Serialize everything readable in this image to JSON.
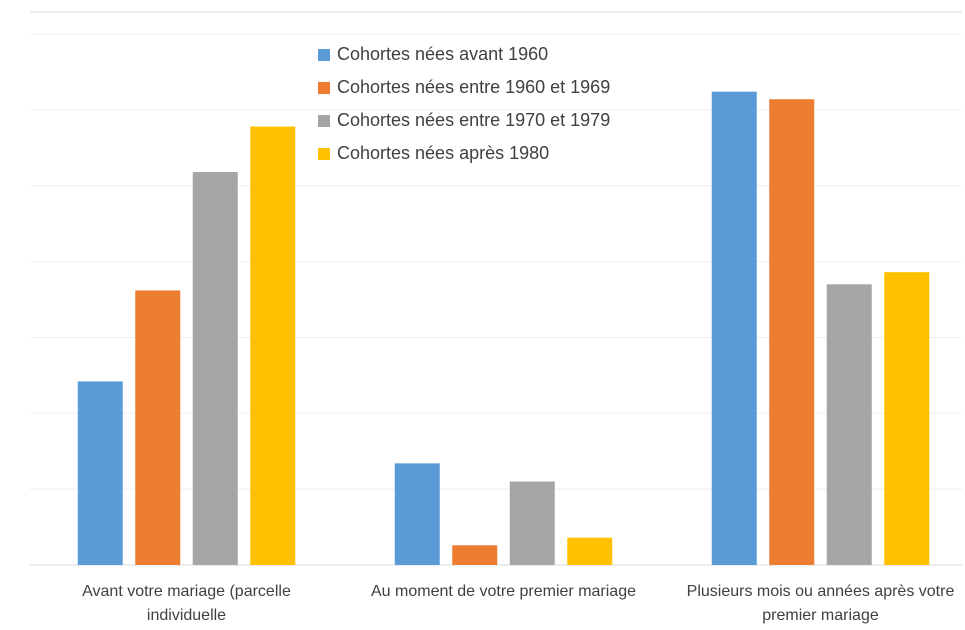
{
  "chart_data": {
    "type": "bar",
    "categories": [
      "Avant votre mariage (parcelle individuelle",
      "Au moment de votre premier mariage",
      "Plusieurs mois ou années après votre premier mariage"
    ],
    "series": [
      {
        "name": "Cohortes nées avant 1960",
        "color": "#5b9bd5",
        "values": [
          12.1,
          6.7,
          31.2
        ]
      },
      {
        "name": "Cohortes nées entre 1960 et 1969",
        "color": "#ed7d31",
        "values": [
          18.1,
          1.3,
          30.7
        ]
      },
      {
        "name": "Cohortes nées entre 1970 et 1979",
        "color": "#a5a5a5",
        "values": [
          25.9,
          5.5,
          18.5
        ]
      },
      {
        "name": "Cohortes nées après 1980",
        "color": "#ffc000",
        "values": [
          28.9,
          1.8,
          19.3
        ]
      }
    ],
    "ylim": [
      0,
      35
    ],
    "yticks": [
      0,
      5,
      10,
      15,
      20,
      25,
      30,
      35
    ],
    "grid": true
  }
}
